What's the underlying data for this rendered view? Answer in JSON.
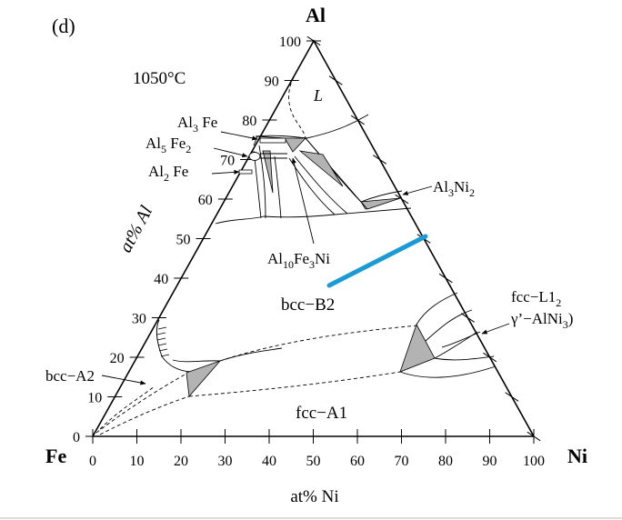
{
  "panel_label": "(d)",
  "temperature": "1050°C",
  "corners": {
    "top": "Al",
    "left": "Fe",
    "right": "Ni"
  },
  "axis_titles": {
    "left": "at% Al",
    "bottom": "at% Ni"
  },
  "left_ticks": [
    "0",
    "10",
    "20",
    "30",
    "40",
    "50",
    "60",
    "70",
    "80",
    "90",
    "100"
  ],
  "bottom_ticks": [
    "0",
    "10",
    "20",
    "30",
    "40",
    "50",
    "60",
    "70",
    "80",
    "90",
    "100"
  ],
  "regions": {
    "liquid": "L",
    "bcc_b2": "bcc−B2",
    "fcc_a1": "fcc−A1"
  },
  "labels": {
    "al3fe_pre": "Al",
    "al3fe_sub": "3",
    "al3fe_post": " Fe",
    "al5fe2_pre": "Al",
    "al5fe2_sub1": "5",
    "al5fe2_mid": " Fe",
    "al5fe2_sub2": "2",
    "al2fe_pre": "Al",
    "al2fe_sub": "2",
    "al2fe_post": " Fe",
    "al3ni2_pre": "Al",
    "al3ni2_sub1": "3",
    "al3ni2_mid": "Ni",
    "al3ni2_sub2": "2",
    "al10_pre": "Al",
    "al10_sub1": "10",
    "al10_mid": "Fe",
    "al10_sub2": "3",
    "al10_post": "Ni",
    "fccl12_pre": "fcc−L1",
    "fccl12_sub": "2",
    "gamma_pre": "γ’−AlNi",
    "gamma_sub": "3",
    "gamma_post": ")",
    "bcca2": "bcc−A2"
  },
  "colors": {
    "highlight_line": "#1a9ad6",
    "phase_fill": "#b3b3b3"
  }
}
